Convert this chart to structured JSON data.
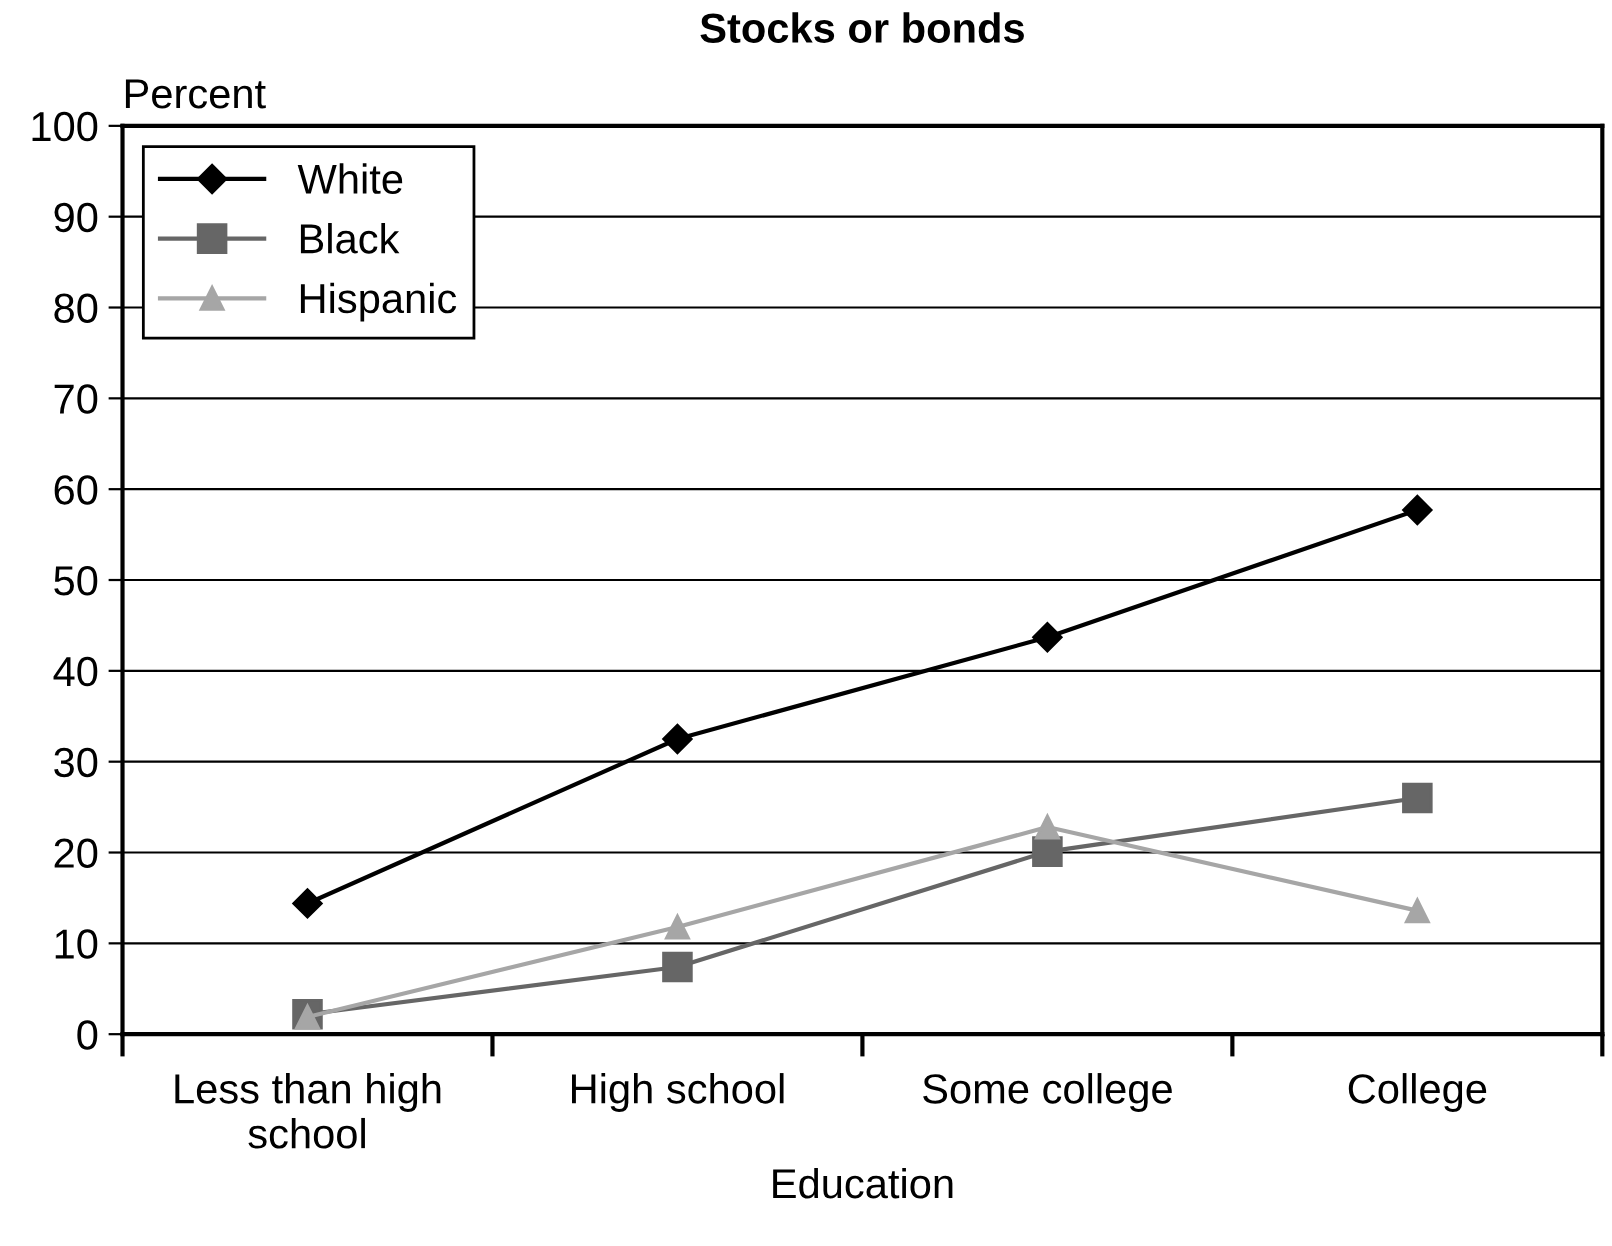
{
  "chart_data": {
    "type": "line",
    "title": "Stocks or bonds",
    "xlabel": "Education",
    "ylabel": "Percent",
    "categories": [
      "Less than high\nschool",
      "High school",
      "Some college",
      "College"
    ],
    "series": [
      {
        "name": "White",
        "color": "#000000",
        "marker": "diamond",
        "values": [
          14.4,
          32.5,
          43.7,
          57.7
        ]
      },
      {
        "name": "Black",
        "color": "#666666",
        "marker": "square",
        "values": [
          2.2,
          7.4,
          20.1,
          26.0
        ]
      },
      {
        "name": "Hispanic",
        "color": "#a6a6a6",
        "marker": "triangle",
        "values": [
          1.9,
          11.8,
          22.8,
          13.6
        ]
      }
    ],
    "ylim": [
      0,
      100
    ],
    "yticks": [
      0,
      10,
      20,
      30,
      40,
      50,
      60,
      70,
      80,
      90,
      100
    ],
    "grid": "y",
    "legend": "top left",
    "line_style": "solid"
  }
}
